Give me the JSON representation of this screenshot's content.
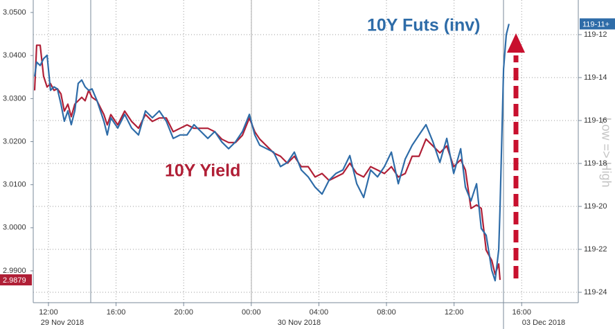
{
  "chart_data": {
    "type": "line",
    "x": [
      11.18,
      11.3,
      11.51,
      11.71,
      11.92,
      12.12,
      12.33,
      12.53,
      12.74,
      12.94,
      13.15,
      13.35,
      13.56,
      13.76,
      13.97,
      14.17,
      14.38,
      14.58,
      14.87,
      15.28,
      15.48,
      15.69,
      16.1,
      16.51,
      16.92,
      17.33,
      17.74,
      18.15,
      18.56,
      18.97,
      19.38,
      19.79,
      20.2,
      20.61,
      21.02,
      21.43,
      21.84,
      22.25,
      22.66,
      23.07,
      23.48,
      23.89,
      24.21,
      24.5,
      24.91,
      25.32,
      25.73,
      26.14,
      26.55,
      26.96,
      27.37,
      27.78,
      28.19,
      28.6,
      29.01,
      29.42,
      29.83,
      30.24,
      30.65,
      31.06,
      31.47,
      31.88,
      32.29,
      32.7,
      33.11,
      33.52,
      33.93,
      34.34,
      34.75,
      35.16,
      35.57,
      35.98,
      36.39,
      36.67,
      37.0,
      37.33,
      37.61,
      37.9,
      38.23,
      38.43,
      38.64,
      38.72,
      38.93,
      39.09,
      39.25
    ],
    "series": [
      {
        "name": "10Y Yield",
        "color": "#b01f36",
        "values": [
          3.0319,
          3.0424,
          3.0424,
          3.0352,
          3.0327,
          3.0335,
          3.0319,
          3.0323,
          3.0311,
          3.0271,
          3.0287,
          3.0258,
          3.0287,
          3.0295,
          3.0303,
          3.0295,
          3.0319,
          3.0303,
          3.0295,
          3.0263,
          3.0239,
          3.0263,
          3.0239,
          3.0271,
          3.0247,
          3.0231,
          3.0263,
          3.0247,
          3.0255,
          3.0255,
          3.0223,
          3.0231,
          3.0239,
          3.0231,
          3.0231,
          3.0231,
          3.0223,
          3.0206,
          3.0198,
          3.0198,
          3.0215,
          3.0255,
          3.0223,
          3.0206,
          3.019,
          3.0174,
          3.0166,
          3.015,
          3.0166,
          3.0142,
          3.0142,
          3.0118,
          3.0126,
          3.011,
          3.0118,
          3.0126,
          3.015,
          3.0126,
          3.0118,
          3.0142,
          3.0134,
          3.0126,
          3.0142,
          3.0118,
          3.0126,
          3.0166,
          3.0166,
          3.0206,
          3.019,
          3.0174,
          3.019,
          3.0142,
          3.0158,
          3.0134,
          3.0045,
          3.0053,
          3.0045,
          2.9948,
          2.9924,
          2.9892,
          2.9916,
          2.9879,
          null,
          null,
          null
        ]
      },
      {
        "name": "10Y Futs (inv)",
        "color": "#2e6ca8",
        "axis": "y2",
        "values": [
          119.436,
          119.415,
          119.42,
          119.41,
          119.405,
          119.456,
          119.451,
          119.454,
          119.476,
          119.501,
          119.486,
          119.506,
          119.486,
          119.446,
          119.441,
          119.451,
          119.456,
          119.454,
          119.471,
          119.501,
          119.521,
          119.496,
          119.511,
          119.491,
          119.511,
          119.521,
          119.486,
          119.496,
          119.486,
          119.501,
          119.526,
          119.521,
          119.521,
          119.506,
          119.516,
          119.526,
          119.516,
          119.531,
          119.541,
          119.531,
          119.516,
          119.491,
          119.521,
          119.536,
          119.541,
          119.546,
          119.567,
          119.561,
          119.546,
          119.572,
          119.582,
          119.597,
          119.607,
          119.587,
          119.577,
          119.572,
          119.551,
          119.592,
          119.612,
          119.572,
          119.582,
          119.567,
          119.546,
          119.592,
          119.556,
          119.536,
          119.521,
          119.506,
          119.531,
          119.561,
          119.526,
          119.577,
          119.541,
          119.597,
          119.617,
          119.592,
          119.657,
          119.667,
          119.718,
          119.733,
          119.688,
          119.627,
          119.425,
          119.375,
          119.359375
        ],
        "value_labels": [
          null,
          null,
          null,
          null,
          null,
          null,
          null,
          null,
          null,
          null,
          null,
          null,
          null,
          null,
          null,
          null,
          null,
          null,
          null,
          null,
          null,
          null,
          null,
          null,
          null,
          null,
          null,
          null,
          null,
          null,
          null,
          null,
          null,
          null,
          null,
          null,
          null,
          null,
          null,
          null,
          null,
          null,
          null,
          null,
          null,
          null,
          null,
          null,
          null,
          null,
          null,
          null,
          null,
          null,
          null,
          null,
          null,
          null,
          null,
          null,
          null,
          null,
          null,
          null,
          null,
          null,
          null,
          null,
          null,
          null,
          null,
          null,
          null,
          null,
          null,
          null,
          null,
          null,
          null,
          null,
          null,
          null,
          null,
          null,
          "119-11+"
        ]
      }
    ],
    "xlim": [
      11.1,
      43.35
    ],
    "xticks": [
      {
        "value": 12,
        "label": "12:00"
      },
      {
        "value": 16,
        "label": "16:00"
      },
      {
        "value": 20,
        "label": "20:00"
      },
      {
        "value": 24,
        "label": "00:00"
      },
      {
        "value": 28,
        "label": "04:00"
      },
      {
        "value": 32,
        "label": "08:00"
      },
      {
        "value": 36,
        "label": "12:00"
      },
      {
        "value": 40,
        "label": "16:00"
      }
    ],
    "date_labels": [
      "29 Nov 2018",
      "30 Nov 2018",
      "03 Dec 2018"
    ],
    "ylim": [
      2.9826,
      3.0529
    ],
    "yticks": [
      {
        "value": 2.99,
        "label": "2.9900"
      },
      {
        "value": 3.0,
        "label": "3.0000"
      },
      {
        "value": 3.01,
        "label": "3.0100"
      },
      {
        "value": 3.02,
        "label": "3.0200"
      },
      {
        "value": 3.03,
        "label": "3.0300"
      },
      {
        "value": 3.04,
        "label": "3.0400"
      },
      {
        "value": 3.05,
        "label": "3.0500"
      }
    ],
    "y2lim": [
      119.7651,
      119.3246
    ],
    "y2ticks": [
      {
        "value": 119.375,
        "label": "119-12"
      },
      {
        "value": 119.4375,
        "label": "119-14"
      },
      {
        "value": 119.5,
        "label": "119-16"
      },
      {
        "value": 119.5625,
        "label": "119-18"
      },
      {
        "value": 119.625,
        "label": "119-20"
      },
      {
        "value": 119.6875,
        "label": "119-22"
      },
      {
        "value": 119.75,
        "label": "119-24"
      }
    ],
    "y2_label": "Low => High",
    "grid": true
  }
}
